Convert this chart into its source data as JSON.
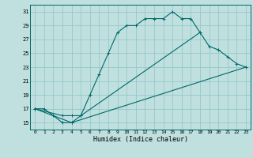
{
  "xlabel": "Humidex (Indice chaleur)",
  "bg_color": "#c0e0e0",
  "grid_color": "#96c8c8",
  "line_color": "#006868",
  "xlim": [
    -0.5,
    23.5
  ],
  "ylim": [
    14.0,
    32.0
  ],
  "xticks": [
    0,
    1,
    2,
    3,
    4,
    5,
    6,
    7,
    8,
    9,
    10,
    11,
    12,
    13,
    14,
    15,
    16,
    17,
    18,
    19,
    20,
    21,
    22,
    23
  ],
  "yticks": [
    15,
    17,
    19,
    21,
    23,
    25,
    27,
    29,
    31
  ],
  "curve1_x": [
    0,
    1,
    2,
    3,
    4,
    5,
    6,
    7,
    8,
    9,
    10,
    11,
    12,
    13,
    14,
    15,
    16,
    17,
    18
  ],
  "curve1_y": [
    17,
    17,
    16,
    15,
    15,
    16,
    19,
    22,
    25,
    28,
    29,
    29,
    30,
    30,
    30,
    31,
    30,
    30,
    28
  ],
  "curve2_x": [
    0,
    3,
    4,
    5,
    18,
    19,
    20,
    21,
    22,
    23
  ],
  "curve2_y": [
    17,
    16,
    16,
    16,
    28,
    26,
    25.5,
    24.5,
    23.5,
    23
  ],
  "curve3_x": [
    0,
    4,
    23
  ],
  "curve3_y": [
    17,
    15,
    23
  ]
}
